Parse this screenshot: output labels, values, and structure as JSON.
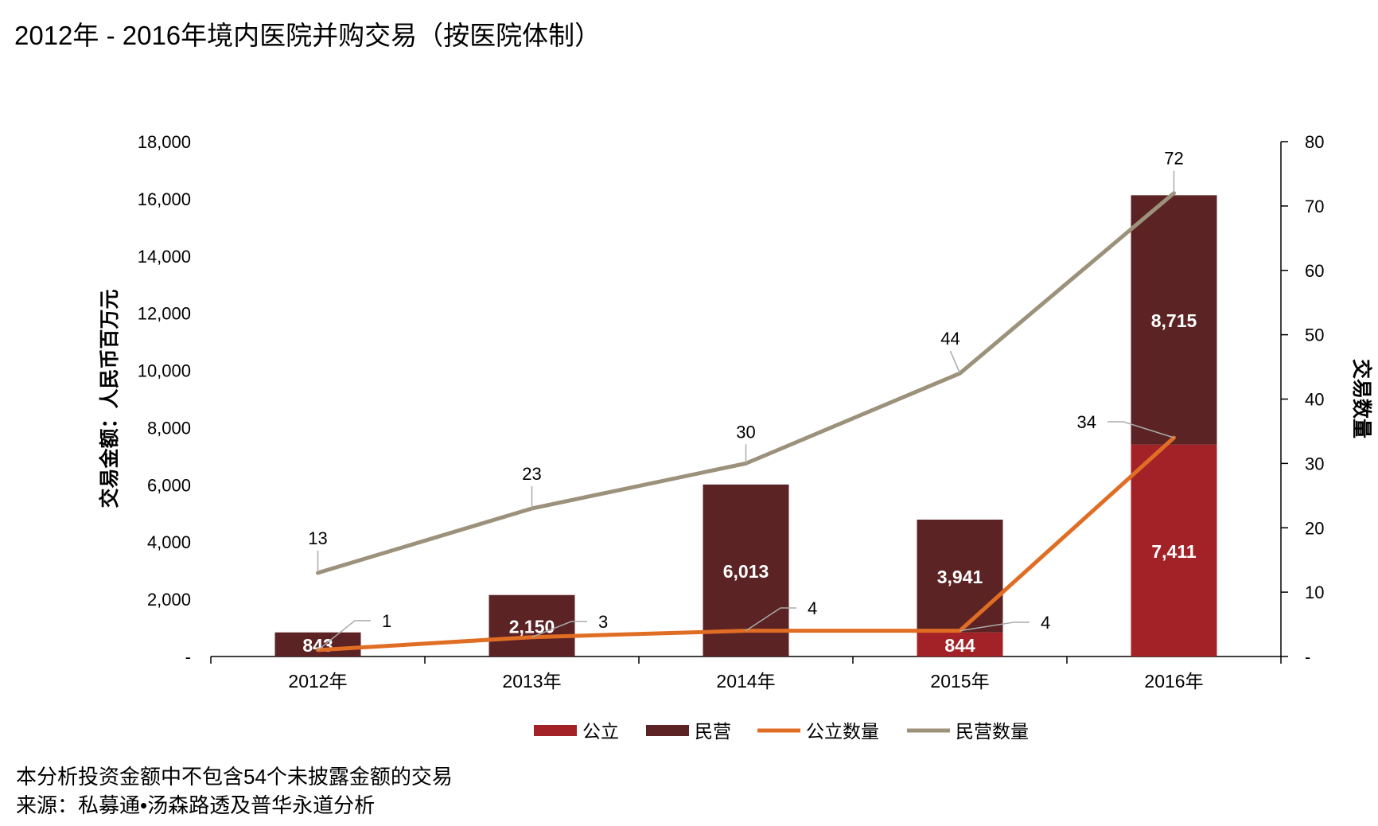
{
  "title": "2012年 - 2016年境内医院并购交易（按医院体制）",
  "note": "本分析投资金额中不包含54个未披露金额的交易",
  "source": "来源：私募通•汤森路透及普华永道分析",
  "colors": {
    "public_bar": "#a32227",
    "private_bar": "#5c2324",
    "public_line": "#e06d24",
    "private_line": "#9c917a",
    "axis": "#000000",
    "leader": "#aaaaaa"
  },
  "chart_data": {
    "type": "bar",
    "stacked": true,
    "categories": [
      "2012年",
      "2013年",
      "2014年",
      "2015年",
      "2016年"
    ],
    "ylabel": "交易金额：人民币百万元",
    "y2label": "交易数量",
    "ylim": [
      0,
      18000
    ],
    "y2lim": [
      0,
      80
    ],
    "yticks": [
      "-",
      "2,000",
      "4,000",
      "6,000",
      "8,000",
      "10,000",
      "12,000",
      "14,000",
      "16,000",
      "18,000"
    ],
    "y2ticks": [
      "-",
      "10",
      "20",
      "30",
      "40",
      "50",
      "60",
      "70",
      "80"
    ],
    "grid": false,
    "legend_position": "bottom",
    "bar_series": [
      {
        "name": "公立",
        "values": [
          0,
          0,
          0,
          844,
          7411
        ],
        "labels": [
          "",
          "",
          "",
          "844",
          "7,411"
        ]
      },
      {
        "name": "民营",
        "values": [
          843,
          2150,
          6013,
          3941,
          8715
        ],
        "labels": [
          "843",
          "2,150",
          "6,013",
          "3,941",
          "8,715"
        ]
      }
    ],
    "line_series": [
      {
        "name": "公立数量",
        "axis": "right",
        "values": [
          1,
          3,
          4,
          4,
          34
        ],
        "labels": [
          "1",
          "3",
          "4",
          "4",
          "34"
        ]
      },
      {
        "name": "民营数量",
        "axis": "right",
        "values": [
          13,
          23,
          30,
          44,
          72
        ],
        "labels": [
          "13",
          "23",
          "30",
          "44",
          "72"
        ]
      }
    ],
    "legend": [
      "公立",
      "民营",
      "公立数量",
      "民营数量"
    ]
  }
}
